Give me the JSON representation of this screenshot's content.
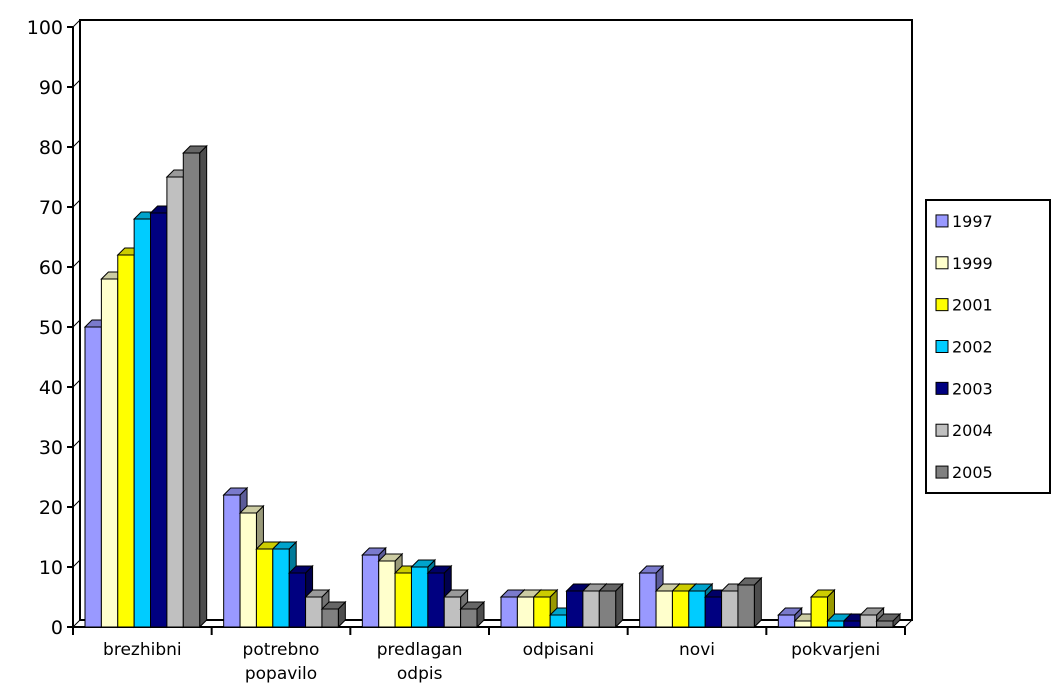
{
  "chart_data": {
    "type": "bar",
    "title": "",
    "xlabel": "",
    "ylabel": "",
    "ylim": [
      0,
      100
    ],
    "yticks": [
      "0",
      "10",
      "20",
      "30",
      "40",
      "50",
      "60",
      "70",
      "80",
      "90",
      "100"
    ],
    "categories": [
      [
        "brezhibni"
      ],
      [
        "potrebno",
        "popavilo"
      ],
      [
        "predlagan",
        "odpis"
      ],
      [
        "odpisani"
      ],
      [
        "novi"
      ],
      [
        "pokvarjeni"
      ]
    ],
    "series": [
      {
        "name": "1997",
        "color": "#9999ff",
        "values": [
          50,
          22,
          12,
          5,
          9,
          2
        ]
      },
      {
        "name": "1999",
        "color": "#ffffcc",
        "values": [
          58,
          19,
          11,
          5,
          6,
          1
        ]
      },
      {
        "name": "2001",
        "color": "#ffff00",
        "values": [
          62,
          13,
          9,
          5,
          6,
          5
        ]
      },
      {
        "name": "2002",
        "color": "#00ccff",
        "values": [
          68,
          13,
          10,
          2,
          6,
          1
        ]
      },
      {
        "name": "2003",
        "color": "#000080",
        "values": [
          69,
          9,
          9,
          6,
          5,
          1
        ]
      },
      {
        "name": "2004",
        "color": "#c0c0c0",
        "values": [
          75,
          5,
          5,
          6,
          6,
          2
        ]
      },
      {
        "name": "2005",
        "color": "#808080",
        "values": [
          79,
          3,
          3,
          6,
          7,
          1
        ]
      }
    ],
    "grid": true,
    "gridColor": "#33ccff",
    "legend_position": "right"
  }
}
